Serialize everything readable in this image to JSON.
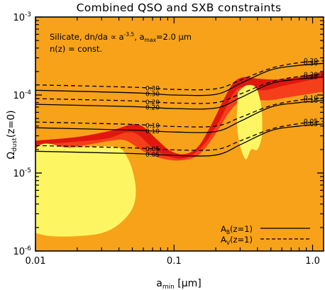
{
  "chart_data": {
    "type": "area",
    "title": "Combined QSO and SXB constraints",
    "xlabel": "a_min [μm]",
    "ylabel": "Ω_dust(z=0)",
    "x_scale": "log",
    "y_scale": "log",
    "xlim": [
      0.01,
      1.2
    ],
    "ylim": [
      1e-06,
      0.001
    ],
    "x_ticks": [
      {
        "value": 0.01,
        "label": "0.01"
      },
      {
        "value": 0.1,
        "label": "0.1"
      },
      {
        "value": 1.0,
        "label": "1.0"
      }
    ],
    "y_ticks": [
      {
        "value": 1e-06,
        "base": "10",
        "exp": "-6"
      },
      {
        "value": 1e-05,
        "base": "10",
        "exp": "-5"
      },
      {
        "value": 0.0001,
        "base": "10",
        "exp": "-4"
      },
      {
        "value": 0.001,
        "base": "10",
        "exp": "-3"
      }
    ],
    "annotations": {
      "line1": "Silicate, dn/da ∝ a",
      "line1_exp": "-3.5",
      "line1_rest": ", a",
      "line1_sub": "max",
      "line1_end": "=2.0 μm",
      "line2": "n(z) = const."
    },
    "regions": [
      {
        "color": "#e1170e",
        "boundary_upper": [
          [
            0.01,
            2.6e-05
          ],
          [
            0.02,
            2.9e-05
          ],
          [
            0.035,
            3.5e-05
          ],
          [
            0.05,
            4.2e-05
          ],
          [
            0.06,
            3.9e-05
          ],
          [
            0.075,
            2.7e-05
          ],
          [
            0.095,
            1.9e-05
          ],
          [
            0.12,
            1.75e-05
          ],
          [
            0.15,
            2.2e-05
          ],
          [
            0.19,
            4.5e-05
          ],
          [
            0.23,
            9e-05
          ],
          [
            0.27,
            0.000145
          ],
          [
            0.32,
            0.00017
          ],
          [
            0.4,
            0.000162
          ],
          [
            0.55,
            0.000158
          ],
          [
            0.8,
            0.00017
          ],
          [
            1.2,
            0.0002
          ]
        ]
      },
      {
        "color": "#f53f1a",
        "boundary_upper": [
          [
            0.01,
            2.3e-05
          ],
          [
            0.03,
            2.7e-05
          ],
          [
            0.045,
            3.3e-05
          ],
          [
            0.055,
            3.1e-05
          ],
          [
            0.07,
            2.1e-05
          ],
          [
            0.09,
            1.65e-05
          ],
          [
            0.12,
            1.55e-05
          ],
          [
            0.16,
            2.2e-05
          ],
          [
            0.21,
            4.5e-05
          ],
          [
            0.26,
            9.5e-05
          ],
          [
            0.3,
            0.000125
          ],
          [
            0.36,
            0.00012
          ],
          [
            0.45,
            0.000115
          ],
          [
            0.6,
            0.00013
          ],
          [
            0.8,
            0.000145
          ],
          [
            1.2,
            0.00017
          ]
        ]
      },
      {
        "color": "#f7a219",
        "boundary_upper": [
          [
            0.01,
            2e-05
          ],
          [
            0.02,
            2.2e-05
          ],
          [
            0.035,
            2.6e-05
          ],
          [
            0.045,
            2.6e-05
          ],
          [
            0.06,
            1.9e-05
          ],
          [
            0.08,
            1.55e-05
          ],
          [
            0.11,
            1.45e-05
          ],
          [
            0.15,
            1.7e-05
          ],
          [
            0.2,
            3.2e-05
          ],
          [
            0.25,
            6e-05
          ],
          [
            0.3,
            8.3e-05
          ],
          [
            0.37,
            8.6e-05
          ],
          [
            0.5,
            8.6e-05
          ],
          [
            0.7,
            9.5e-05
          ],
          [
            1.0,
            0.000105
          ],
          [
            1.2,
            0.00011
          ]
        ]
      },
      {
        "color": "#fdf662",
        "boundary": [
          [
            0.01,
            1.7e-06
          ],
          [
            0.01,
            1.95e-05
          ],
          [
            0.018,
            2.1e-05
          ],
          [
            0.03,
            2.2e-05
          ],
          [
            0.04,
            2.1e-05
          ],
          [
            0.045,
            1.7e-05
          ],
          [
            0.05,
            1.1e-05
          ],
          [
            0.053,
            6e-06
          ],
          [
            0.05,
            3.5e-06
          ],
          [
            0.04,
            2.2e-06
          ],
          [
            0.03,
            1.7e-06
          ],
          [
            0.02,
            1.55e-06
          ],
          [
            0.013,
            1.55e-06
          ]
        ]
      },
      {
        "color": "#fdf662",
        "boundary": [
          [
            0.29,
            0.00011
          ],
          [
            0.33,
            0.000132
          ],
          [
            0.38,
            0.00013
          ],
          [
            0.41,
            0.0001
          ],
          [
            0.43,
            6e-05
          ],
          [
            0.43,
            3e-05
          ],
          [
            0.4,
            2e-05
          ],
          [
            0.36,
            2e-05
          ],
          [
            0.33,
            1.5e-05
          ],
          [
            0.3,
            2.2e-05
          ],
          [
            0.285,
            4e-05
          ],
          [
            0.285,
            7e-05
          ]
        ]
      }
    ],
    "series": [
      {
        "name": "A_B(z=1)",
        "style": "solid",
        "label": "0.30",
        "values": [
          [
            0.01,
            0.000115
          ],
          [
            0.05,
            0.000107
          ],
          [
            0.1,
            0.0001
          ],
          [
            0.2,
            0.000102
          ],
          [
            0.3,
            0.00014
          ],
          [
            0.5,
            0.00021
          ],
          [
            0.8,
            0.00024
          ],
          [
            1.2,
            0.000255
          ]
        ]
      },
      {
        "name": "A_B(z=1)",
        "style": "solid",
        "label": "0.20",
        "values": [
          [
            0.01,
            7.6e-05
          ],
          [
            0.05,
            7.1e-05
          ],
          [
            0.1,
            6.7e-05
          ],
          [
            0.2,
            6.8e-05
          ],
          [
            0.3,
            9.2e-05
          ],
          [
            0.5,
            0.00014
          ],
          [
            0.8,
            0.00016
          ],
          [
            1.2,
            0.00017
          ]
        ]
      },
      {
        "name": "A_B(z=1)",
        "style": "solid",
        "label": "0.10",
        "values": [
          [
            0.01,
            3.8e-05
          ],
          [
            0.05,
            3.55e-05
          ],
          [
            0.1,
            3.35e-05
          ],
          [
            0.2,
            3.4e-05
          ],
          [
            0.3,
            4.6e-05
          ],
          [
            0.5,
            7e-05
          ],
          [
            0.8,
            8e-05
          ],
          [
            1.2,
            8.5e-05
          ]
        ]
      },
      {
        "name": "A_B(z=1)",
        "style": "solid",
        "label": "0.05",
        "values": [
          [
            0.01,
            1.9e-05
          ],
          [
            0.05,
            1.78e-05
          ],
          [
            0.1,
            1.68e-05
          ],
          [
            0.2,
            1.7e-05
          ],
          [
            0.3,
            2.3e-05
          ],
          [
            0.5,
            3.5e-05
          ],
          [
            0.8,
            4e-05
          ],
          [
            1.2,
            4.25e-05
          ]
        ]
      },
      {
        "name": "A_V(z=1)",
        "style": "dashed",
        "label": "0.30",
        "values": [
          [
            0.01,
            0.000135
          ],
          [
            0.05,
            0.000126
          ],
          [
            0.1,
            0.000118
          ],
          [
            0.2,
            0.00012
          ],
          [
            0.3,
            0.000155
          ],
          [
            0.5,
            0.00022
          ],
          [
            0.8,
            0.00026
          ],
          [
            1.2,
            0.000275
          ]
        ]
      },
      {
        "name": "A_V(z=1)",
        "style": "dashed",
        "label": "0.20",
        "values": [
          [
            0.01,
            9e-05
          ],
          [
            0.05,
            8.4e-05
          ],
          [
            0.1,
            7.9e-05
          ],
          [
            0.2,
            8e-05
          ],
          [
            0.3,
            0.000103
          ],
          [
            0.5,
            0.000147
          ],
          [
            0.8,
            0.000173
          ],
          [
            1.2,
            0.000183
          ]
        ]
      },
      {
        "name": "A_V(z=1)",
        "style": "dashed",
        "label": "0.10",
        "values": [
          [
            0.01,
            4.5e-05
          ],
          [
            0.05,
            4.2e-05
          ],
          [
            0.1,
            3.95e-05
          ],
          [
            0.2,
            4e-05
          ],
          [
            0.3,
            5.15e-05
          ],
          [
            0.5,
            7.3e-05
          ],
          [
            0.8,
            8.6e-05
          ],
          [
            1.2,
            9.2e-05
          ]
        ]
      },
      {
        "name": "A_V(z=1)",
        "style": "dashed",
        "label": "0.05",
        "values": [
          [
            0.01,
            2.25e-05
          ],
          [
            0.05,
            2.1e-05
          ],
          [
            0.1,
            1.98e-05
          ],
          [
            0.2,
            2e-05
          ],
          [
            0.3,
            2.58e-05
          ],
          [
            0.5,
            3.65e-05
          ],
          [
            0.8,
            4.3e-05
          ],
          [
            1.2,
            4.6e-05
          ]
        ]
      }
    ],
    "legend": {
      "placement": "bottom-right",
      "entries": [
        {
          "label": "A",
          "sub": "B",
          "rest": "(z=1)",
          "style": "solid"
        },
        {
          "label": "A",
          "sub": "V",
          "rest": "(z=1)",
          "style": "dashed"
        }
      ]
    },
    "background_color": "#f7a219"
  }
}
